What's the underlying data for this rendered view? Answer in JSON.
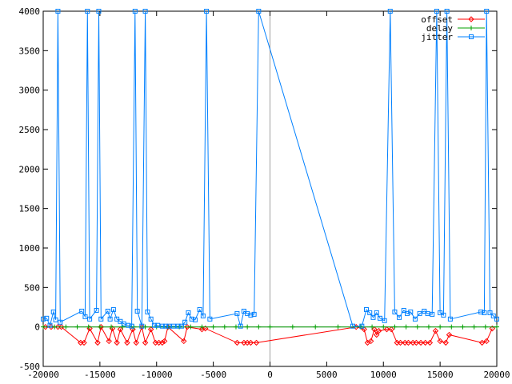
{
  "chart_data": {
    "type": "line",
    "title": "",
    "xlabel": "",
    "ylabel": "",
    "xlim": [
      -20000,
      20000
    ],
    "ylim": [
      -500,
      4000
    ],
    "x_ticks": [
      -20000,
      -15000,
      -10000,
      -5000,
      0,
      5000,
      10000,
      15000,
      20000
    ],
    "y_ticks": [
      -500,
      0,
      500,
      1000,
      1500,
      2000,
      2500,
      3000,
      3500,
      4000
    ],
    "grid": false,
    "zero_axes": true,
    "legend_position": "top-right",
    "series": [
      {
        "name": "offset",
        "color": "#ff0000",
        "marker": "diamond",
        "points": [
          [
            -19800,
            0
          ],
          [
            -19300,
            0
          ],
          [
            -18700,
            0
          ],
          [
            -18400,
            0
          ],
          [
            -16700,
            -200
          ],
          [
            -16400,
            -200
          ],
          [
            -15900,
            -20
          ],
          [
            -15200,
            -200
          ],
          [
            -14900,
            0
          ],
          [
            -14200,
            -180
          ],
          [
            -13900,
            -20
          ],
          [
            -13500,
            -200
          ],
          [
            -13200,
            -30
          ],
          [
            -12600,
            -200
          ],
          [
            -12100,
            -30
          ],
          [
            -11800,
            -200
          ],
          [
            -11300,
            0
          ],
          [
            -11000,
            -200
          ],
          [
            -10500,
            -30
          ],
          [
            -10100,
            -200
          ],
          [
            -9800,
            -200
          ],
          [
            -9500,
            -200
          ],
          [
            -9300,
            -180
          ],
          [
            -9000,
            0
          ],
          [
            -7600,
            -180
          ],
          [
            -7300,
            0
          ],
          [
            -6000,
            -30
          ],
          [
            -5700,
            -20
          ],
          [
            -2900,
            -200
          ],
          [
            -2300,
            -200
          ],
          [
            -2000,
            -200
          ],
          [
            -1700,
            -200
          ],
          [
            -1200,
            -200
          ],
          [
            7600,
            0
          ],
          [
            8300,
            -30
          ],
          [
            8600,
            -200
          ],
          [
            8900,
            -180
          ],
          [
            9200,
            -30
          ],
          [
            9400,
            -100
          ],
          [
            9600,
            -50
          ],
          [
            10300,
            -30
          ],
          [
            10700,
            -30
          ],
          [
            11200,
            -200
          ],
          [
            11500,
            -200
          ],
          [
            11900,
            -200
          ],
          [
            12200,
            -200
          ],
          [
            12600,
            -200
          ],
          [
            12900,
            -200
          ],
          [
            13300,
            -200
          ],
          [
            13700,
            -200
          ],
          [
            14100,
            -200
          ],
          [
            14600,
            -50
          ],
          [
            15000,
            -180
          ],
          [
            15500,
            -200
          ],
          [
            15800,
            -100
          ],
          [
            18700,
            -200
          ],
          [
            19100,
            -180
          ],
          [
            19600,
            -20
          ]
        ]
      },
      {
        "name": "delay",
        "color": "#00a000",
        "marker": "plus",
        "points": [
          [
            -20000,
            0
          ],
          [
            -19000,
            0
          ],
          [
            -18000,
            0
          ],
          [
            -17000,
            0
          ],
          [
            -16000,
            0
          ],
          [
            -15000,
            0
          ],
          [
            -14000,
            0
          ],
          [
            -13000,
            0
          ],
          [
            -12000,
            0
          ],
          [
            -11000,
            0
          ],
          [
            -10000,
            0
          ],
          [
            -9000,
            0
          ],
          [
            -8000,
            0
          ],
          [
            -7000,
            0
          ],
          [
            -6000,
            0
          ],
          [
            -5000,
            0
          ],
          [
            -4000,
            0
          ],
          [
            -3000,
            0
          ],
          [
            -2000,
            0
          ],
          [
            -1000,
            0
          ],
          [
            0,
            0
          ],
          [
            2000,
            0
          ],
          [
            4000,
            0
          ],
          [
            6000,
            0
          ],
          [
            8000,
            0
          ],
          [
            9000,
            0
          ],
          [
            10000,
            0
          ],
          [
            11000,
            0
          ],
          [
            12000,
            0
          ],
          [
            13000,
            0
          ],
          [
            14000,
            0
          ],
          [
            15000,
            0
          ],
          [
            16000,
            0
          ],
          [
            17000,
            0
          ],
          [
            18000,
            0
          ],
          [
            19000,
            0
          ],
          [
            20000,
            0
          ]
        ]
      },
      {
        "name": "jitter",
        "color": "#0080ff",
        "marker": "square",
        "points": [
          [
            -20000,
            100
          ],
          [
            -19700,
            110
          ],
          [
            -19400,
            20
          ],
          [
            -19100,
            190
          ],
          [
            -18900,
            90
          ],
          [
            -18700,
            4000
          ],
          [
            -18500,
            60
          ],
          [
            -16600,
            200
          ],
          [
            -16300,
            130
          ],
          [
            -16100,
            4000
          ],
          [
            -15900,
            100
          ],
          [
            -15300,
            210
          ],
          [
            -15100,
            4000
          ],
          [
            -14900,
            100
          ],
          [
            -14300,
            200
          ],
          [
            -14100,
            100
          ],
          [
            -13800,
            220
          ],
          [
            -13500,
            100
          ],
          [
            -13200,
            70
          ],
          [
            -12900,
            40
          ],
          [
            -12500,
            20
          ],
          [
            -12200,
            10
          ],
          [
            -11900,
            4000
          ],
          [
            -11700,
            200
          ],
          [
            -11300,
            10
          ],
          [
            -11000,
            4000
          ],
          [
            -10800,
            190
          ],
          [
            -10500,
            100
          ],
          [
            -10200,
            20
          ],
          [
            -9900,
            20
          ],
          [
            -9500,
            10
          ],
          [
            -9200,
            10
          ],
          [
            -8900,
            10
          ],
          [
            -8500,
            10
          ],
          [
            -8100,
            10
          ],
          [
            -7800,
            10
          ],
          [
            -7500,
            60
          ],
          [
            -7200,
            180
          ],
          [
            -6900,
            100
          ],
          [
            -6600,
            90
          ],
          [
            -6200,
            220
          ],
          [
            -5900,
            140
          ],
          [
            -5600,
            4000
          ],
          [
            -5300,
            100
          ],
          [
            -2900,
            170
          ],
          [
            -2600,
            10
          ],
          [
            -2300,
            200
          ],
          [
            -2000,
            170
          ],
          [
            -1700,
            150
          ],
          [
            -1400,
            160
          ],
          [
            -1000,
            4000
          ],
          [
            7300,
            10
          ],
          [
            8100,
            10
          ],
          [
            8500,
            220
          ],
          [
            8800,
            180
          ],
          [
            9100,
            120
          ],
          [
            9400,
            180
          ],
          [
            9700,
            110
          ],
          [
            10100,
            80
          ],
          [
            10600,
            4000
          ],
          [
            11000,
            190
          ],
          [
            11400,
            120
          ],
          [
            11800,
            210
          ],
          [
            12100,
            170
          ],
          [
            12400,
            190
          ],
          [
            12800,
            100
          ],
          [
            13200,
            170
          ],
          [
            13600,
            200
          ],
          [
            13900,
            170
          ],
          [
            14300,
            160
          ],
          [
            14700,
            4000
          ],
          [
            15000,
            180
          ],
          [
            15300,
            150
          ],
          [
            15600,
            4000
          ],
          [
            15900,
            100
          ],
          [
            18600,
            190
          ],
          [
            18900,
            180
          ],
          [
            19100,
            4000
          ],
          [
            19400,
            180
          ],
          [
            19700,
            140
          ],
          [
            20000,
            100
          ]
        ]
      }
    ]
  }
}
